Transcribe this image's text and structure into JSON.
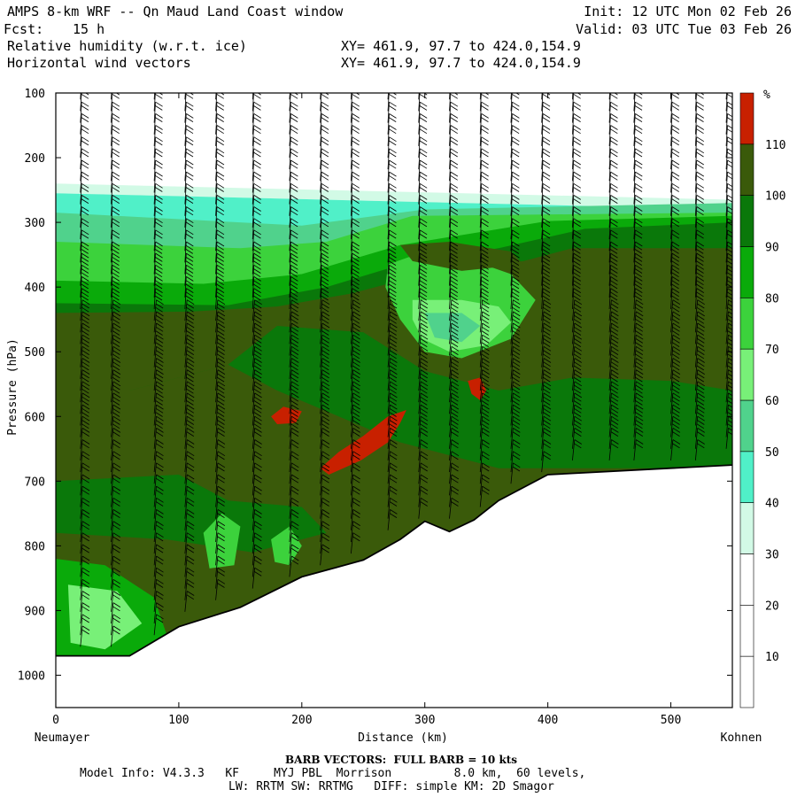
{
  "header": {
    "title_left": "AMPS 8-km WRF -- Qn Maud Land Coast window",
    "fcst_label": "Fcst:",
    "fcst_value": "15 h",
    "field1": "Relative humidity (w.r.t. ice)",
    "field2": "Horizontal wind vectors",
    "xy1": "XY= 461.9, 97.7 to 424.0,154.9",
    "xy2": "XY= 461.9, 97.7 to 424.0,154.9",
    "init": "Init: 12 UTC Mon 02 Feb 26",
    "valid": "Valid: 03 UTC Tue 03 Feb 26"
  },
  "chart_data": {
    "type": "heatmap",
    "title": "Relative humidity (w.r.t. ice)",
    "xlabel": "Distance (km)",
    "ylabel": "Pressure (hPa)",
    "xlim": [
      0,
      550
    ],
    "ylim": [
      1050,
      100
    ],
    "x_ticks": [
      0,
      100,
      200,
      300,
      400,
      500
    ],
    "y_ticks": [
      100,
      200,
      300,
      400,
      500,
      600,
      700,
      800,
      900,
      1000
    ],
    "endpoint_left": "Neumayer",
    "endpoint_right": "Kohnen",
    "colorbar": {
      "unit": "%",
      "levels": [
        10,
        20,
        30,
        40,
        50,
        60,
        70,
        80,
        90,
        100,
        110
      ],
      "colors": [
        "#ffffff",
        "#ffffff",
        "#ffffff",
        "#d2fae6",
        "#50f0c8",
        "#50d28c",
        "#78f078",
        "#3cd23c",
        "#0aaa0a",
        "#0a780a",
        "#3a5a0a",
        "#c82000"
      ]
    },
    "terrain": [
      [
        0,
        970
      ],
      [
        60,
        970
      ],
      [
        100,
        925
      ],
      [
        150,
        895
      ],
      [
        200,
        848
      ],
      [
        250,
        822
      ],
      [
        280,
        790
      ],
      [
        300,
        762
      ],
      [
        320,
        778
      ],
      [
        340,
        760
      ],
      [
        360,
        730
      ],
      [
        400,
        690
      ],
      [
        450,
        685
      ],
      [
        500,
        680
      ],
      [
        550,
        675
      ]
    ],
    "humidity_regions": [
      {
        "name": "moist-layer",
        "rh": 95
      },
      {
        "name": "dry-pocket",
        "rh": 65
      },
      {
        "name": "supersat-core",
        "rh": 115
      }
    ],
    "barb_columns_km": [
      20,
      45,
      80,
      105,
      130,
      160,
      190,
      215,
      240,
      270,
      295,
      320,
      345,
      370,
      395,
      420,
      450,
      470,
      500,
      520,
      545
    ]
  },
  "footer": {
    "barb_note": "BARB VECTORS:  FULL BARB = 10 kts",
    "model_info_line1": "Model Info: V4.3.3   KF     MYJ PBL  Morrison         8.0 km,  60 levels,",
    "model_info_line2": "LW: RRTM SW: RRTMG   DIFF: simple KM: 2D Smagor"
  }
}
